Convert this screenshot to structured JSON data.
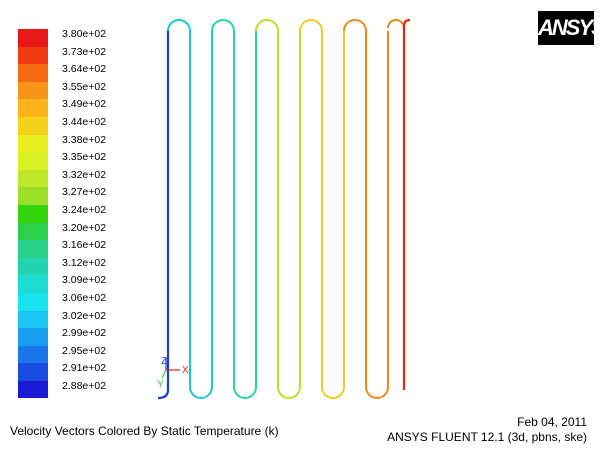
{
  "colorbar": {
    "labels": [
      "3.80e+02",
      "3.73e+02",
      "3.64e+02",
      "3.55e+02",
      "3.49e+02",
      "3.44e+02",
      "3.38e+02",
      "3.35e+02",
      "3.32e+02",
      "3.27e+02",
      "3.24e+02",
      "3.20e+02",
      "3.16e+02",
      "3.12e+02",
      "3.09e+02",
      "3.06e+02",
      "3.02e+02",
      "2.99e+02",
      "2.95e+02",
      "2.91e+02",
      "2.88e+02"
    ],
    "colors": [
      "#e81818",
      "#f03a10",
      "#f56a12",
      "#f89418",
      "#fbb518",
      "#f7d21c",
      "#eaf020",
      "#d8f024",
      "#bde828",
      "#9be028",
      "#34d40c",
      "#2cd04a",
      "#28d089",
      "#22d4b0",
      "#1cdcd4",
      "#18e2ee",
      "#1cc6f2",
      "#1a9ef0",
      "#1a76ea",
      "#1a4ce0",
      "#1a1ad6"
    ]
  },
  "logo": {
    "text": "ANSYS"
  },
  "axes": {
    "z": "Z",
    "x": "X",
    "y": "Y"
  },
  "caption": {
    "title": "Velocity Vectors Colored By Static Temperature (k)",
    "date": "Feb 04, 2011",
    "software": "ANSYS FLUENT 12.1 (3d, pbns, ske)"
  },
  "tubes": {
    "colors": [
      "#1a3cd0",
      "#18c8d8",
      "#22d8a0",
      "#b8e028",
      "#f2cc20",
      "#ef8a1a",
      "#d62818"
    ]
  }
}
